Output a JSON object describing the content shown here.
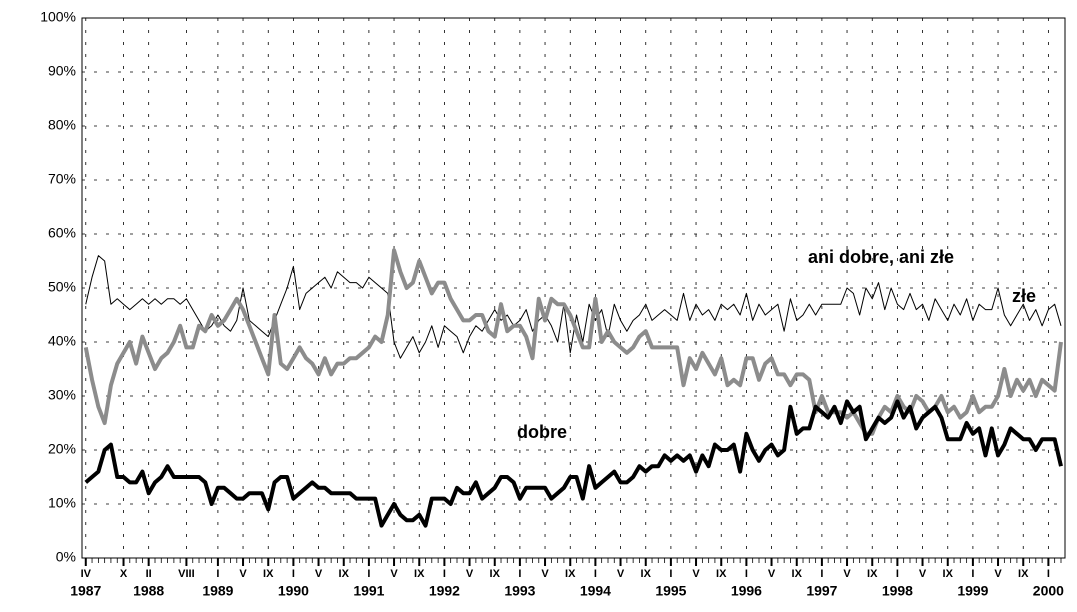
{
  "chart_data": {
    "type": "line",
    "annotations": [
      "ani dobre, ani złe",
      "złe",
      "dobre"
    ],
    "xlim": [
      1987.2,
      2000.22
    ],
    "ylim": [
      0,
      100
    ],
    "yticks": [
      {
        "value": 0,
        "label": "0%"
      },
      {
        "value": 10,
        "label": "10%"
      },
      {
        "value": 20,
        "label": "20%"
      },
      {
        "value": 30,
        "label": "30%"
      },
      {
        "value": 40,
        "label": "40%"
      },
      {
        "value": 50,
        "label": "50%"
      },
      {
        "value": 60,
        "label": "60%"
      },
      {
        "value": 70,
        "label": "70%"
      },
      {
        "value": 80,
        "label": "80%"
      },
      {
        "value": 90,
        "label": "90%"
      },
      {
        "value": 100,
        "label": "100%"
      }
    ],
    "xticks": [
      {
        "value": 1987.25,
        "label": "IV"
      },
      {
        "value": 1987.75,
        "label": "X"
      },
      {
        "value": 1988.083,
        "label": "II"
      },
      {
        "value": 1988.583,
        "label": "VIII"
      },
      {
        "value": 1989,
        "label": "I"
      },
      {
        "value": 1989.333,
        "label": "V"
      },
      {
        "value": 1989.667,
        "label": "IX"
      },
      {
        "value": 1990,
        "label": "I"
      },
      {
        "value": 1990.333,
        "label": "V"
      },
      {
        "value": 1990.667,
        "label": "IX"
      },
      {
        "value": 1991,
        "label": "I"
      },
      {
        "value": 1991.333,
        "label": "V"
      },
      {
        "value": 1991.667,
        "label": "IX"
      },
      {
        "value": 1992,
        "label": "I"
      },
      {
        "value": 1992.333,
        "label": "V"
      },
      {
        "value": 1992.667,
        "label": "IX"
      },
      {
        "value": 1993,
        "label": "I"
      },
      {
        "value": 1993.333,
        "label": "V"
      },
      {
        "value": 1993.667,
        "label": "IX"
      },
      {
        "value": 1994,
        "label": "I"
      },
      {
        "value": 1994.333,
        "label": "V"
      },
      {
        "value": 1994.667,
        "label": "IX"
      },
      {
        "value": 1995,
        "label": "I"
      },
      {
        "value": 1995.333,
        "label": "V"
      },
      {
        "value": 1995.667,
        "label": "IX"
      },
      {
        "value": 1996,
        "label": "I"
      },
      {
        "value": 1996.333,
        "label": "V"
      },
      {
        "value": 1996.667,
        "label": "IX"
      },
      {
        "value": 1997,
        "label": "I"
      },
      {
        "value": 1997.333,
        "label": "V"
      },
      {
        "value": 1997.667,
        "label": "IX"
      },
      {
        "value": 1998,
        "label": "I"
      },
      {
        "value": 1998.333,
        "label": "V"
      },
      {
        "value": 1998.667,
        "label": "IX"
      },
      {
        "value": 1999,
        "label": "I"
      },
      {
        "value": 1999.333,
        "label": "V"
      },
      {
        "value": 1999.667,
        "label": "IX"
      },
      {
        "value": 2000,
        "label": "I"
      }
    ],
    "year_labels": [
      {
        "value": 1987.25,
        "label": "1987"
      },
      {
        "value": 1988.083,
        "label": "1988"
      },
      {
        "value": 1989,
        "label": "1989"
      },
      {
        "value": 1990,
        "label": "1990"
      },
      {
        "value": 1991,
        "label": "1991"
      },
      {
        "value": 1992,
        "label": "1992"
      },
      {
        "value": 1993,
        "label": "1993"
      },
      {
        "value": 1994,
        "label": "1994"
      },
      {
        "value": 1995,
        "label": "1995"
      },
      {
        "value": 1996,
        "label": "1996"
      },
      {
        "value": 1997,
        "label": "1997"
      },
      {
        "value": 1998,
        "label": "1998"
      },
      {
        "value": 1999,
        "label": "1999"
      },
      {
        "value": 2000,
        "label": "2000"
      }
    ],
    "grid": true,
    "x": [
      1987.25,
      1987.333,
      1987.417,
      1987.5,
      1987.583,
      1987.667,
      1987.75,
      1987.833,
      1987.917,
      1988,
      1988.083,
      1988.167,
      1988.25,
      1988.333,
      1988.417,
      1988.5,
      1988.583,
      1988.667,
      1988.75,
      1988.833,
      1988.917,
      1989,
      1989.083,
      1989.167,
      1989.25,
      1989.333,
      1989.417,
      1989.5,
      1989.583,
      1989.667,
      1989.75,
      1989.833,
      1989.917,
      1990,
      1990.083,
      1990.167,
      1990.25,
      1990.333,
      1990.417,
      1990.5,
      1990.583,
      1990.667,
      1990.75,
      1990.833,
      1990.917,
      1991,
      1991.083,
      1991.167,
      1991.25,
      1991.333,
      1991.417,
      1991.5,
      1991.583,
      1991.667,
      1991.75,
      1991.833,
      1991.917,
      1992,
      1992.083,
      1992.167,
      1992.25,
      1992.333,
      1992.417,
      1992.5,
      1992.583,
      1992.667,
      1992.75,
      1992.833,
      1992.917,
      1993,
      1993.083,
      1993.167,
      1993.25,
      1993.333,
      1993.417,
      1993.5,
      1993.583,
      1993.667,
      1993.75,
      1993.833,
      1993.917,
      1994,
      1994.083,
      1994.167,
      1994.25,
      1994.333,
      1994.417,
      1994.5,
      1994.583,
      1994.667,
      1994.75,
      1994.833,
      1994.917,
      1995,
      1995.083,
      1995.167,
      1995.25,
      1995.333,
      1995.417,
      1995.5,
      1995.583,
      1995.667,
      1995.75,
      1995.833,
      1995.917,
      1996,
      1996.083,
      1996.167,
      1996.25,
      1996.333,
      1996.417,
      1996.5,
      1996.583,
      1996.667,
      1996.75,
      1996.833,
      1996.917,
      1997,
      1997.083,
      1997.167,
      1997.25,
      1997.333,
      1997.417,
      1997.5,
      1997.583,
      1997.667,
      1997.75,
      1997.833,
      1997.917,
      1998,
      1998.083,
      1998.167,
      1998.25,
      1998.333,
      1998.417,
      1998.5,
      1998.583,
      1998.667,
      1998.75,
      1998.833,
      1998.917,
      1999,
      1999.083,
      1999.167,
      1999.25,
      1999.333,
      1999.417,
      1999.5,
      1999.583,
      1999.667,
      1999.75,
      1999.833,
      1999.917,
      2000,
      2000.083,
      2000.167
    ],
    "series": [
      {
        "color": "#000000",
        "width": 1,
        "values": [
          47,
          52,
          56,
          55,
          47,
          48,
          47,
          46,
          47,
          48,
          47,
          48,
          47,
          48,
          48,
          47,
          48,
          46,
          44,
          42,
          43,
          45,
          43,
          42,
          44,
          50,
          44,
          43,
          42,
          41,
          44,
          47,
          50,
          54,
          46,
          49,
          50,
          51,
          52,
          50,
          53,
          52,
          51,
          51,
          50,
          52,
          51,
          50,
          49,
          40,
          37,
          39,
          41,
          38,
          40,
          43,
          39,
          43,
          42,
          41,
          38,
          41,
          43,
          42,
          44,
          46,
          44,
          45,
          43,
          44,
          46,
          42,
          44,
          45,
          43,
          40,
          47,
          38,
          45,
          40,
          47,
          44,
          46,
          41,
          47,
          44,
          42,
          44,
          45,
          47,
          44,
          45,
          46,
          45,
          44,
          49,
          44,
          47,
          45,
          46,
          44,
          47,
          46,
          47,
          45,
          49,
          44,
          47,
          45,
          46,
          47,
          42,
          48,
          44,
          45,
          47,
          45,
          47,
          47,
          47,
          47,
          50,
          49,
          45,
          50,
          48,
          51,
          46,
          50,
          47,
          46,
          49,
          46,
          47,
          44,
          48,
          46,
          44,
          47,
          45,
          48,
          44,
          47,
          46,
          46,
          50,
          45,
          43,
          45,
          47,
          44,
          46,
          43,
          46,
          47,
          43
        ]
      },
      {
        "color": "#8c8c8c",
        "width": 4,
        "values": [
          39,
          33,
          28,
          25,
          32,
          36,
          38,
          40,
          36,
          41,
          38,
          35,
          37,
          38,
          40,
          43,
          39,
          39,
          43,
          42,
          45,
          43,
          44,
          46,
          48,
          46,
          43,
          40,
          37,
          34,
          45,
          36,
          35,
          37,
          39,
          37,
          36,
          34,
          37,
          34,
          36,
          36,
          37,
          37,
          38,
          39,
          41,
          40,
          45,
          57,
          53,
          50,
          51,
          55,
          52,
          49,
          51,
          51,
          48,
          46,
          44,
          44,
          45,
          45,
          42,
          41,
          47,
          42,
          43,
          43,
          41,
          37,
          48,
          44,
          48,
          47,
          47,
          45,
          42,
          39,
          39,
          48,
          40,
          42,
          40,
          39,
          38,
          39,
          41,
          42,
          39,
          39,
          39,
          39,
          39,
          32,
          37,
          35,
          38,
          36,
          34,
          37,
          32,
          33,
          32,
          37,
          37,
          33,
          36,
          37,
          34,
          34,
          32,
          34,
          34,
          33,
          27,
          30,
          27,
          27,
          27,
          26,
          27,
          25,
          23,
          23,
          26,
          28,
          27,
          30,
          28,
          27,
          30,
          29,
          27,
          28,
          30,
          27,
          28,
          26,
          27,
          30,
          27,
          28,
          28,
          30,
          35,
          30,
          33,
          31,
          33,
          30,
          33,
          32,
          31,
          40
        ]
      },
      {
        "color": "#000000",
        "width": 4,
        "values": [
          14,
          15,
          16,
          20,
          21,
          15,
          15,
          14,
          14,
          16,
          12,
          14,
          15,
          17,
          15,
          15,
          15,
          15,
          15,
          14,
          10,
          13,
          13,
          12,
          11,
          11,
          12,
          12,
          12,
          9,
          14,
          15,
          15,
          11,
          12,
          13,
          14,
          13,
          13,
          12,
          12,
          12,
          12,
          11,
          11,
          11,
          11,
          6,
          8,
          10,
          8,
          7,
          7,
          8,
          6,
          11,
          11,
          11,
          10,
          13,
          12,
          12,
          14,
          11,
          12,
          13,
          15,
          15,
          14,
          11,
          13,
          13,
          13,
          13,
          11,
          12,
          13,
          15,
          15,
          11,
          17,
          13,
          14,
          15,
          16,
          14,
          14,
          15,
          17,
          16,
          17,
          17,
          19,
          18,
          19,
          18,
          19,
          16,
          19,
          17,
          21,
          20,
          20,
          21,
          16,
          23,
          20,
          18,
          20,
          21,
          19,
          20,
          28,
          23,
          24,
          24,
          28,
          27,
          26,
          28,
          25,
          29,
          27,
          28,
          22,
          24,
          26,
          25,
          26,
          29,
          26,
          28,
          24,
          26,
          27,
          28,
          26,
          22,
          22,
          22,
          25,
          23,
          24,
          19,
          24,
          19,
          21,
          24,
          23,
          22,
          22,
          20,
          22,
          22,
          22,
          17
        ]
      }
    ]
  }
}
